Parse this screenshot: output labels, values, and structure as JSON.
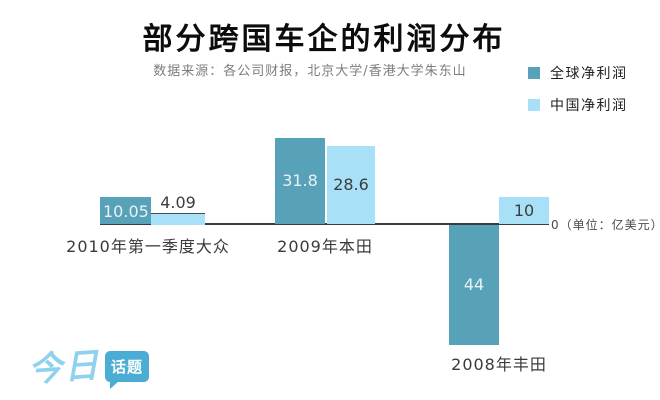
{
  "header": {
    "title": "部分跨国车企的利润分布",
    "subtitle": "数据来源：各公司财报，北京大学/香港大学朱东山"
  },
  "legend": {
    "items": [
      {
        "label": "全球净利润",
        "color": "#57a2b8"
      },
      {
        "label": "中国净利润",
        "color": "#a7e0f7"
      }
    ]
  },
  "logo": {
    "brand_script": "今日",
    "brand_bubble": "话题",
    "script_color": "#8ed2ee",
    "bubble_color": "#4badd3"
  },
  "colors": {
    "axis_line": "#3b3b3b",
    "bar_global": "#57a2b8",
    "bar_china": "#a7e0f7",
    "value_on_dark": "#e7f2f4",
    "value_on_light": "#3d3d3d"
  },
  "chart_data": {
    "type": "bar",
    "title": "部分跨国车企的利润分布",
    "subtitle_source": "数据来源：各公司财报，北京大学/香港大学朱东山",
    "unit": "亿美元",
    "unit_label": "0（单位：亿美元）",
    "baseline": 0,
    "grid": false,
    "legend_position": "top-right",
    "categories": [
      "2010年第一季度大众",
      "2009年本田",
      "2008年丰田"
    ],
    "series": [
      {
        "name": "全球净利润",
        "color": "#57a2b8",
        "values": [
          10.05,
          31.8,
          -44
        ]
      },
      {
        "name": "中国净利润",
        "color": "#a7e0f7",
        "values": [
          4.09,
          28.6,
          10
        ]
      }
    ],
    "value_labels": [
      [
        "10.05",
        "4.09"
      ],
      [
        "31.8",
        "28.6"
      ],
      [
        "44",
        "10"
      ]
    ],
    "label_positions": [
      [
        "inside-bottom",
        "above"
      ],
      [
        "center",
        "center"
      ],
      [
        "center",
        "center"
      ]
    ]
  }
}
